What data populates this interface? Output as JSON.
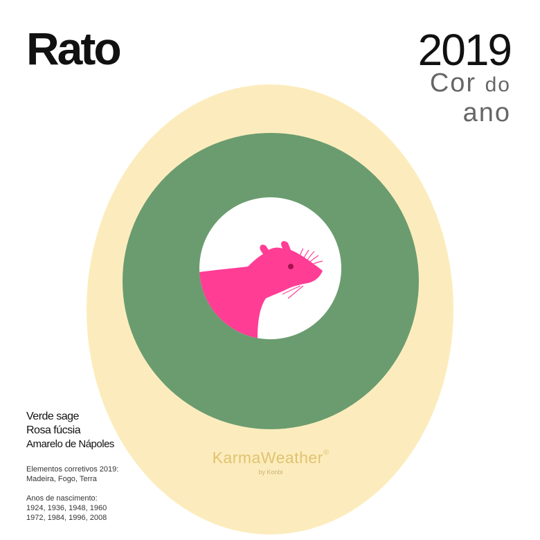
{
  "header": {
    "title": "Rato",
    "year": "2019",
    "subtitle_word1": "Cor",
    "subtitle_word2": "do",
    "subtitle_word3": "ano"
  },
  "colors": {
    "items": [
      "Verde sage",
      "Rosa fúcsia",
      "Amarelo de Nápoles"
    ],
    "hex": {
      "sage": "#6a9c6f",
      "fuchsia": "#ff3d95",
      "naples": "#fcecbd"
    }
  },
  "elements": {
    "label": "Elementos corretivos 2019:",
    "value": "Madeira, Fogo, Terra"
  },
  "birth_years": {
    "label": "Anos de nascimento:",
    "line1": "1924, 1936, 1948, 1960",
    "line2": "1972, 1984, 1996, 2008"
  },
  "brand": {
    "name": "KarmaWeather",
    "registered": "®",
    "by": "by",
    "company": "Konbi"
  },
  "icons": [
    "rat-icon"
  ]
}
